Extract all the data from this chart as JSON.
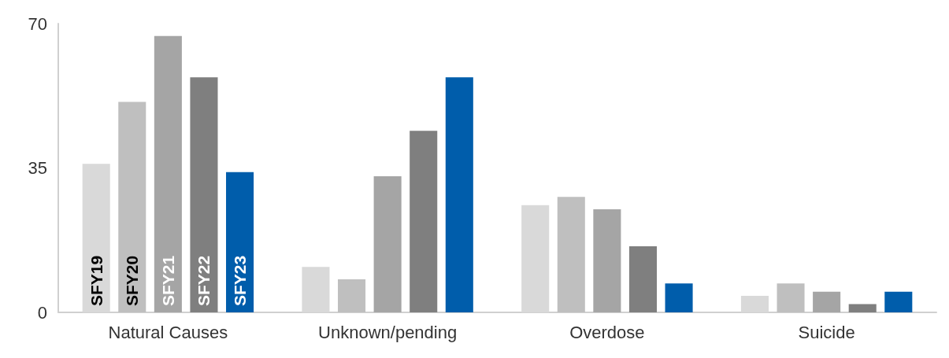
{
  "chart_data": {
    "type": "bar",
    "categories": [
      "Natural Causes",
      "Unknown/pending",
      "Overdose",
      "Suicide"
    ],
    "series": [
      {
        "name": "SFY19",
        "color": "#d9d9d9",
        "values": [
          36,
          11,
          26,
          4
        ]
      },
      {
        "name": "SFY20",
        "color": "#bfbfbf",
        "values": [
          51,
          8,
          28,
          7
        ]
      },
      {
        "name": "SFY21",
        "color": "#a5a5a5",
        "values": [
          67,
          33,
          25,
          5
        ]
      },
      {
        "name": "SFY22",
        "color": "#7f7f7f",
        "values": [
          57,
          44,
          16,
          2
        ]
      },
      {
        "name": "SFY23",
        "color": "#005dab",
        "values": [
          34,
          57,
          7,
          5
        ]
      }
    ],
    "ylim": [
      0,
      70
    ],
    "yticks": [
      0,
      35,
      70
    ],
    "grid": false,
    "legend": false
  }
}
